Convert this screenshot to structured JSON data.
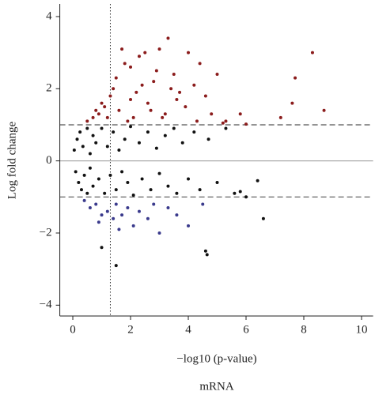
{
  "chart_data": {
    "type": "scatter",
    "xlabel": "−log10 (p-value)",
    "ylabel": "Log fold change",
    "caption": "mRNA",
    "xlim": [
      -0.45,
      10.4
    ],
    "ylim": [
      -4.3,
      4.35
    ],
    "xticks": [
      0,
      2,
      4,
      6,
      8,
      10
    ],
    "yticks": [
      {
        "value": -4,
        "label": "−4"
      },
      {
        "value": -2,
        "label": "−2"
      },
      0,
      2,
      4
    ],
    "fold_change_lines": [
      -1,
      1
    ],
    "p_value_line": 1.3,
    "zero_line": 0,
    "series": [
      {
        "color": "#111111",
        "x": [
          0.05,
          0.1,
          0.15,
          0.2,
          0.25,
          0.3,
          0.35,
          0.4,
          0.5,
          0.5,
          0.6,
          0.6,
          0.7,
          0.7,
          0.8,
          0.9,
          1.0,
          1.1,
          1.2,
          1.3,
          1.4,
          1.5,
          1.6,
          1.7,
          1.8,
          1.9,
          2.0,
          2.1,
          2.3,
          2.4,
          2.6,
          2.7,
          2.9,
          3.0,
          3.2,
          3.3,
          3.5,
          3.6,
          3.8,
          4.0,
          4.2,
          4.4,
          4.7,
          5.0,
          5.3,
          1.0,
          1.5,
          4.6,
          4.65,
          6.6,
          6.4,
          5.6,
          5.8,
          6.0
        ],
        "values": [
          0.3,
          -0.3,
          0.6,
          -0.6,
          0.8,
          -0.8,
          0.4,
          -0.4,
          0.9,
          -0.9,
          0.2,
          -0.2,
          0.7,
          -0.7,
          0.5,
          -0.5,
          0.9,
          -0.9,
          0.4,
          -0.4,
          0.8,
          -0.8,
          0.3,
          -0.3,
          0.6,
          -0.6,
          0.95,
          -0.95,
          0.5,
          -0.5,
          0.8,
          -0.8,
          0.35,
          -0.35,
          0.7,
          -0.7,
          0.9,
          -0.9,
          0.5,
          -0.5,
          0.8,
          -0.8,
          0.6,
          -0.6,
          0.9,
          -2.4,
          -2.9,
          -2.5,
          -2.6,
          -1.6,
          -0.55,
          -0.9,
          -0.85,
          -1.0
        ]
      },
      {
        "color": "#8b1c1c",
        "x": [
          0.5,
          0.7,
          0.9,
          1.1,
          1.3,
          1.5,
          1.6,
          1.8,
          2.0,
          2.1,
          2.3,
          2.5,
          2.6,
          2.8,
          3.0,
          3.2,
          3.3,
          3.5,
          3.7,
          3.9,
          4.0,
          4.2,
          4.4,
          4.6,
          4.8,
          5.0,
          5.3,
          5.8,
          6.0,
          7.2,
          7.6,
          7.7,
          8.3,
          8.7,
          1.0,
          1.4,
          1.9,
          2.2,
          2.4,
          2.7,
          2.9,
          3.1,
          3.4,
          1.7,
          2.0,
          0.8,
          1.2,
          3.6,
          4.3,
          5.2
        ],
        "values": [
          1.1,
          1.2,
          1.3,
          1.5,
          1.8,
          2.3,
          1.4,
          2.7,
          2.6,
          1.2,
          2.9,
          3.0,
          1.6,
          2.2,
          3.1,
          1.3,
          3.4,
          2.4,
          1.9,
          1.5,
          3.0,
          2.1,
          2.7,
          1.8,
          1.3,
          2.4,
          1.1,
          1.3,
          1.02,
          1.2,
          1.6,
          2.3,
          3.0,
          1.4,
          1.6,
          2.0,
          1.1,
          1.9,
          2.1,
          1.4,
          2.5,
          1.2,
          2.0,
          3.1,
          1.7,
          1.4,
          1.2,
          1.7,
          1.1,
          1.05
        ]
      },
      {
        "color": "#3a3a8c",
        "x": [
          0.4,
          0.6,
          0.8,
          1.0,
          1.2,
          1.4,
          1.5,
          1.7,
          1.9,
          2.1,
          2.3,
          2.6,
          2.8,
          3.0,
          3.3,
          3.6,
          4.0,
          4.5,
          0.9,
          1.6
        ],
        "values": [
          -1.1,
          -1.3,
          -1.2,
          -1.5,
          -1.4,
          -1.6,
          -1.2,
          -1.5,
          -1.3,
          -1.8,
          -1.4,
          -1.6,
          -1.2,
          -2.0,
          -1.3,
          -1.5,
          -1.8,
          -1.2,
          -1.7,
          -1.9
        ]
      }
    ]
  }
}
